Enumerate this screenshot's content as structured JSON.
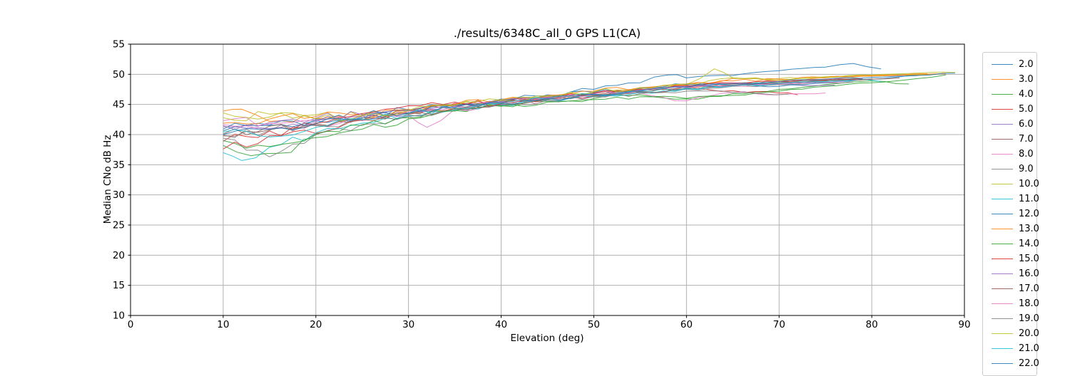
{
  "chart_data": {
    "type": "line",
    "title": "./results/6348C_all_0 GPS L1(CA)",
    "xlabel": "Elevation (deg)",
    "ylabel": "Median CNo dB Hz",
    "xlim": [
      0,
      90
    ],
    "ylim": [
      10,
      55
    ],
    "xticks": [
      0,
      10,
      20,
      30,
      40,
      50,
      60,
      70,
      80,
      90
    ],
    "yticks": [
      10,
      15,
      20,
      25,
      30,
      35,
      40,
      45,
      50,
      55
    ],
    "grid": true,
    "grid_color": "#b0b0b0",
    "spine_color": "#000000",
    "legend_position": "outside-right",
    "legend_entries_visible": [
      "2.0",
      "3.0",
      "4.0",
      "5.0",
      "6.0",
      "7.0",
      "8.0",
      "9.0",
      "10.0",
      "11.0",
      "12.0",
      "13.0",
      "14.0",
      "15.0",
      "16.0",
      "17.0",
      "18.0",
      "19.0",
      "20.0",
      "21.0",
      "22.0"
    ],
    "series": [
      {
        "name": "2.0",
        "color": "#1f77b4",
        "x": [
          10,
          15,
          20,
          25,
          30,
          35,
          40,
          45,
          50,
          55,
          58,
          60,
          65,
          70,
          75,
          78,
          81
        ],
        "y": [
          40.6,
          41.5,
          42.3,
          43.0,
          44.0,
          44.9,
          45.9,
          46.6,
          47.5,
          48.6,
          49.9,
          49.4,
          49.8,
          50.6,
          51.2,
          51.8,
          50.9
        ]
      },
      {
        "name": "3.0",
        "color": "#ff7f0e",
        "x": [
          10,
          12,
          15,
          20,
          25,
          30,
          35,
          40,
          45,
          50,
          55,
          60,
          65,
          70,
          75,
          80,
          85,
          88
        ],
        "y": [
          43.9,
          44.2,
          42.2,
          42.6,
          42.4,
          43.5,
          44.4,
          45.5,
          46.0,
          46.8,
          47.6,
          48.2,
          49.3,
          49.0,
          49.4,
          49.7,
          49.9,
          50.1
        ]
      },
      {
        "name": "4.0",
        "color": "#2ca02c",
        "x": [
          10,
          13,
          16,
          20,
          25,
          30,
          35,
          40,
          45,
          50,
          55,
          60,
          65,
          70,
          75,
          80,
          84
        ],
        "y": [
          38.2,
          36.5,
          36.9,
          39.5,
          40.9,
          42.6,
          44.0,
          44.8,
          45.5,
          46.0,
          46.6,
          45.9,
          46.8,
          47.5,
          48.3,
          48.9,
          48.4
        ]
      },
      {
        "name": "5.0",
        "color": "#d62728",
        "x": [
          10,
          15,
          20,
          25,
          30,
          35,
          40,
          45,
          50,
          55,
          60,
          65,
          70,
          72
        ],
        "y": [
          38.9,
          40.6,
          40.2,
          42.4,
          43.9,
          45.2,
          44.9,
          45.8,
          46.4,
          47.1,
          47.6,
          47.3,
          46.9,
          46.6
        ]
      },
      {
        "name": "6.0",
        "color": "#9467bd",
        "x": [
          10,
          15,
          20,
          25,
          30,
          35,
          40,
          45,
          50,
          55,
          60,
          65,
          70,
          73,
          76
        ],
        "y": [
          41.3,
          41.0,
          42.1,
          43.1,
          43.6,
          44.5,
          45.4,
          46.1,
          46.7,
          47.4,
          48.0,
          48.6,
          48.3,
          48.1,
          48.2
        ]
      },
      {
        "name": "7.0",
        "color": "#8c564b",
        "x": [
          10,
          15,
          20,
          25,
          30,
          35,
          40,
          45,
          50,
          55,
          60,
          65,
          70,
          75,
          80
        ],
        "y": [
          40.1,
          41.4,
          41.8,
          42.8,
          43.6,
          44.7,
          45.2,
          46.0,
          46.6,
          47.2,
          47.9,
          48.4,
          48.8,
          49.0,
          49.2
        ]
      },
      {
        "name": "8.0",
        "color": "#e377c2",
        "x": [
          10,
          15,
          20,
          25,
          30,
          32,
          35,
          40,
          45,
          50,
          55,
          60,
          65,
          70,
          75
        ],
        "y": [
          41.7,
          40.9,
          41.5,
          42.3,
          43.2,
          41.2,
          44.2,
          45.0,
          45.7,
          46.3,
          46.9,
          45.6,
          47.0,
          46.6,
          46.9
        ]
      },
      {
        "name": "9.0",
        "color": "#7f7f7f",
        "x": [
          10,
          15,
          20,
          25,
          30,
          35,
          40,
          45,
          50,
          55,
          60,
          65,
          70,
          75,
          78
        ],
        "y": [
          39.4,
          36.3,
          40.0,
          41.7,
          43.0,
          44.3,
          45.1,
          45.8,
          46.4,
          47.0,
          47.5,
          48.0,
          48.3,
          48.6,
          48.7
        ]
      },
      {
        "name": "10.0",
        "color": "#bcbd22",
        "x": [
          10,
          15,
          20,
          25,
          30,
          35,
          40,
          45,
          50,
          55,
          60,
          63,
          65,
          70,
          75,
          80,
          85,
          87
        ],
        "y": [
          43.6,
          42.9,
          43.3,
          43.0,
          43.9,
          44.8,
          45.6,
          46.3,
          47.0,
          47.7,
          48.3,
          50.9,
          49.4,
          49.3,
          49.6,
          49.8,
          50.0,
          50.0
        ]
      },
      {
        "name": "11.0",
        "color": "#17becf",
        "x": [
          10,
          12,
          15,
          20,
          25,
          30,
          35,
          40,
          45,
          50,
          55,
          60,
          65,
          70,
          75,
          78,
          81
        ],
        "y": [
          37.0,
          35.7,
          37.9,
          40.3,
          41.9,
          43.1,
          44.1,
          44.9,
          45.7,
          46.3,
          47.0,
          47.6,
          48.2,
          48.6,
          48.9,
          49.3,
          48.8
        ]
      },
      {
        "name": "12.0",
        "color": "#1f77b4",
        "x": [
          10,
          15,
          20,
          25,
          30,
          35,
          40,
          45,
          50,
          55,
          60,
          65,
          70,
          75,
          80,
          85,
          89
        ],
        "y": [
          40.9,
          41.6,
          42.5,
          43.2,
          44.1,
          44.9,
          45.7,
          46.4,
          47.0,
          47.7,
          48.3,
          48.2,
          48.0,
          48.6,
          49.2,
          49.8,
          50.2
        ]
      },
      {
        "name": "13.0",
        "color": "#ff7f0e",
        "x": [
          10,
          15,
          20,
          25,
          30,
          35,
          40,
          45,
          50,
          55,
          60,
          65,
          70,
          75,
          80,
          86
        ],
        "y": [
          41.9,
          42.6,
          43.0,
          43.4,
          44.2,
          45.0,
          45.8,
          46.5,
          47.2,
          47.8,
          48.4,
          48.9,
          49.2,
          49.5,
          49.8,
          50.1
        ]
      },
      {
        "name": "14.0",
        "color": "#2ca02c",
        "x": [
          10,
          15,
          20,
          25,
          30,
          35,
          40,
          45,
          50,
          55,
          60,
          65,
          70,
          75,
          80,
          85,
          88
        ],
        "y": [
          39.0,
          38.0,
          40.1,
          41.5,
          42.8,
          43.9,
          44.7,
          45.4,
          45.8,
          46.3,
          46.0,
          46.5,
          47.2,
          48.0,
          48.6,
          49.3,
          49.9
        ]
      },
      {
        "name": "15.0",
        "color": "#d62728",
        "x": [
          10,
          15,
          20,
          25,
          30,
          35,
          40,
          45,
          50,
          55,
          60,
          65,
          70,
          75,
          79
        ],
        "y": [
          37.6,
          39.8,
          41.9,
          43.5,
          44.8,
          45.4,
          45.1,
          46.2,
          46.9,
          47.5,
          48.1,
          48.5,
          48.8,
          49.1,
          49.3
        ]
      },
      {
        "name": "16.0",
        "color": "#9467bd",
        "x": [
          10,
          15,
          20,
          25,
          30,
          35,
          40,
          45,
          50,
          55,
          60,
          65,
          70,
          74
        ],
        "y": [
          41.5,
          42.0,
          42.7,
          43.3,
          44.0,
          44.8,
          45.5,
          46.2,
          46.8,
          47.3,
          47.8,
          48.2,
          48.5,
          48.6
        ]
      },
      {
        "name": "17.0",
        "color": "#8c564b",
        "x": [
          10,
          15,
          20,
          25,
          30,
          35,
          40,
          45,
          50,
          55,
          60,
          65,
          70,
          75,
          80,
          83
        ],
        "y": [
          39.8,
          40.8,
          41.6,
          42.5,
          43.4,
          44.3,
          45.1,
          45.9,
          46.5,
          47.1,
          47.7,
          48.2,
          48.6,
          48.9,
          49.2,
          49.4
        ]
      },
      {
        "name": "18.0",
        "color": "#e377c2",
        "x": [
          10,
          15,
          20,
          25,
          30,
          35,
          40,
          45,
          50,
          55,
          60,
          65,
          70,
          75,
          77
        ],
        "y": [
          42.3,
          41.8,
          42.4,
          43.1,
          43.9,
          44.7,
          45.4,
          46.1,
          46.7,
          47.3,
          47.8,
          48.1,
          48.4,
          48.7,
          48.8
        ]
      },
      {
        "name": "19.0",
        "color": "#7f7f7f",
        "x": [
          10,
          15,
          20,
          25,
          30,
          35,
          40,
          45,
          50,
          55,
          60,
          65,
          68,
          71
        ],
        "y": [
          39.9,
          40.7,
          41.5,
          42.4,
          43.3,
          44.2,
          45.0,
          45.7,
          46.3,
          46.8,
          47.2,
          47.0,
          46.8,
          46.7
        ]
      },
      {
        "name": "20.0",
        "color": "#bcbd22",
        "x": [
          10,
          15,
          20,
          25,
          30,
          35,
          40,
          45,
          50,
          55,
          60,
          65,
          70,
          75,
          80,
          85,
          89
        ],
        "y": [
          42.8,
          43.4,
          42.6,
          43.2,
          44.0,
          44.9,
          45.7,
          46.4,
          47.1,
          47.8,
          48.4,
          49.4,
          49.0,
          49.5,
          49.9,
          50.2,
          50.3
        ]
      },
      {
        "name": "21.0",
        "color": "#17becf",
        "x": [
          10,
          15,
          20,
          25,
          30,
          35,
          40,
          45,
          50,
          55,
          60,
          65,
          70,
          75,
          78
        ],
        "y": [
          40.4,
          39.6,
          41.2,
          42.5,
          43.5,
          44.4,
          45.2,
          45.9,
          46.6,
          47.2,
          47.7,
          48.1,
          48.5,
          48.8,
          49.0
        ]
      },
      {
        "name": "22.0",
        "color": "#1f77b4",
        "x": [
          10,
          15,
          20,
          25,
          30,
          35,
          40,
          45,
          50,
          55,
          60,
          65,
          70,
          75,
          80,
          85
        ],
        "y": [
          40.0,
          40.9,
          41.8,
          42.7,
          43.6,
          44.5,
          45.3,
          46.0,
          46.7,
          47.3,
          47.9,
          48.4,
          48.8,
          49.2,
          49.5,
          49.8
        ]
      }
    ]
  }
}
